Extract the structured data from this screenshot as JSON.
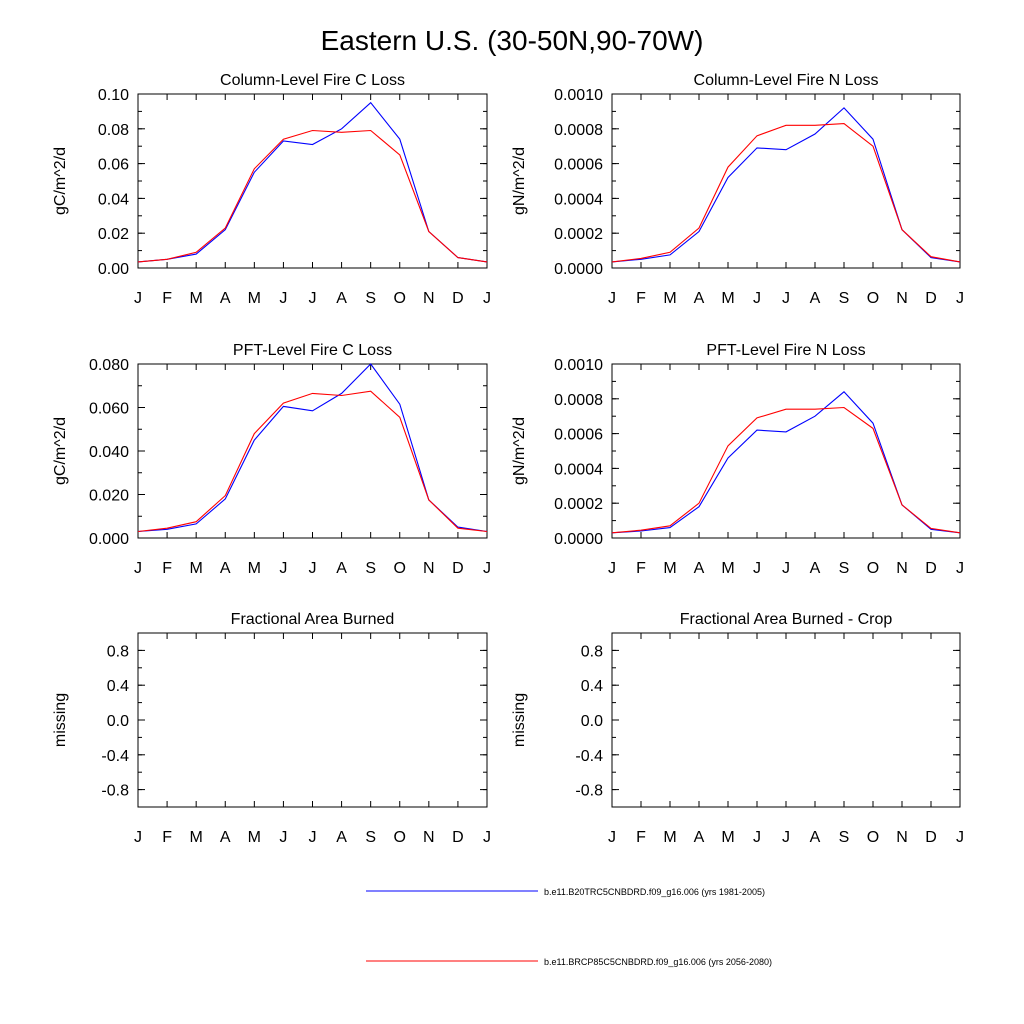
{
  "figure": {
    "title": "Eastern U.S. (30-50N,90-70W)"
  },
  "legend": [
    {
      "label": "b.e11.B20TRC5CNBDRD.f09_g16.006 (yrs 1981-2005)",
      "color": "#0000ff"
    },
    {
      "label": "b.e11.BRCP85C5CNBDRD.f09_g16.006 (yrs 2056-2080)",
      "color": "#ff0000"
    }
  ],
  "chart_data": [
    {
      "type": "line",
      "title": "Column-Level Fire C Loss",
      "xlabel": "",
      "ylabel": "gC/m^2/d",
      "categories": [
        "J",
        "F",
        "M",
        "A",
        "M",
        "J",
        "J",
        "A",
        "S",
        "O",
        "N",
        "D",
        "J"
      ],
      "ylim": [
        0.0,
        0.1
      ],
      "yticks": [
        0.0,
        0.02,
        0.04,
        0.06,
        0.08,
        0.1
      ],
      "yticklabels": [
        "0.00",
        "0.02",
        "0.04",
        "0.06",
        "0.08",
        "0.10"
      ],
      "series": [
        {
          "name": "b.e11.B20TRC5CNBDRD.f09_g16.006 (yrs 1981-2005)",
          "color": "#0000ff",
          "values": [
            0.0035,
            0.005,
            0.008,
            0.022,
            0.055,
            0.073,
            0.071,
            0.08,
            0.095,
            0.074,
            0.021,
            0.006,
            0.0035
          ]
        },
        {
          "name": "b.e11.BRCP85C5CNBDRD.f09_g16.006 (yrs 2056-2080)",
          "color": "#ff0000",
          "values": [
            0.0035,
            0.005,
            0.009,
            0.023,
            0.057,
            0.074,
            0.079,
            0.078,
            0.079,
            0.065,
            0.021,
            0.006,
            0.0035
          ]
        }
      ]
    },
    {
      "type": "line",
      "title": "Column-Level Fire N Loss",
      "xlabel": "",
      "ylabel": "gN/m^2/d",
      "categories": [
        "J",
        "F",
        "M",
        "A",
        "M",
        "J",
        "J",
        "A",
        "S",
        "O",
        "N",
        "D",
        "J"
      ],
      "ylim": [
        0.0,
        0.001
      ],
      "yticks": [
        0.0,
        0.0002,
        0.0004,
        0.0006,
        0.0008,
        0.001
      ],
      "yticklabels": [
        "0.0000",
        "0.0002",
        "0.0004",
        "0.0006",
        "0.0008",
        "0.0010"
      ],
      "series": [
        {
          "name": "b.e11.B20TRC5CNBDRD.f09_g16.006 (yrs 1981-2005)",
          "color": "#0000ff",
          "values": [
            3.5e-05,
            5e-05,
            7.5e-05,
            0.00021,
            0.00052,
            0.00069,
            0.00068,
            0.00077,
            0.00092,
            0.00074,
            0.00022,
            6e-05,
            3.5e-05
          ]
        },
        {
          "name": "b.e11.BRCP85C5CNBDRD.f09_g16.006 (yrs 2056-2080)",
          "color": "#ff0000",
          "values": [
            3.5e-05,
            5.5e-05,
            9e-05,
            0.00023,
            0.00058,
            0.00076,
            0.00082,
            0.00082,
            0.00083,
            0.0007,
            0.00022,
            6.5e-05,
            3.5e-05
          ]
        }
      ]
    },
    {
      "type": "line",
      "title": "PFT-Level Fire C Loss",
      "xlabel": "",
      "ylabel": "gC/m^2/d",
      "categories": [
        "J",
        "F",
        "M",
        "A",
        "M",
        "J",
        "J",
        "A",
        "S",
        "O",
        "N",
        "D",
        "J"
      ],
      "ylim": [
        0.0,
        0.08
      ],
      "yticks": [
        0.0,
        0.02,
        0.04,
        0.06,
        0.08
      ],
      "yticklabels": [
        "0.000",
        "0.020",
        "0.040",
        "0.060",
        "0.080"
      ],
      "series": [
        {
          "name": "b.e11.B20TRC5CNBDRD.f09_g16.006 (yrs 1981-2005)",
          "color": "#0000ff",
          "values": [
            0.003,
            0.004,
            0.0065,
            0.018,
            0.045,
            0.0605,
            0.0585,
            0.0665,
            0.08,
            0.0615,
            0.0175,
            0.005,
            0.003
          ]
        },
        {
          "name": "b.e11.BRCP85C5CNBDRD.f09_g16.006 (yrs 2056-2080)",
          "color": "#ff0000",
          "values": [
            0.003,
            0.0045,
            0.0075,
            0.0195,
            0.048,
            0.062,
            0.0665,
            0.0655,
            0.0675,
            0.0555,
            0.0175,
            0.0045,
            0.003
          ]
        }
      ]
    },
    {
      "type": "line",
      "title": "PFT-Level Fire N Loss",
      "xlabel": "",
      "ylabel": "gN/m^2/d",
      "categories": [
        "J",
        "F",
        "M",
        "A",
        "M",
        "J",
        "J",
        "A",
        "S",
        "O",
        "N",
        "D",
        "J"
      ],
      "ylim": [
        0.0,
        0.001
      ],
      "yticks": [
        0.0,
        0.0002,
        0.0004,
        0.0006,
        0.0008,
        0.001
      ],
      "yticklabels": [
        "0.0000",
        "0.0002",
        "0.0004",
        "0.0006",
        "0.0008",
        "0.0010"
      ],
      "series": [
        {
          "name": "b.e11.B20TRC5CNBDRD.f09_g16.006 (yrs 1981-2005)",
          "color": "#0000ff",
          "values": [
            3e-05,
            4e-05,
            6e-05,
            0.00018,
            0.00046,
            0.00062,
            0.00061,
            0.0007,
            0.00084,
            0.00066,
            0.00019,
            5e-05,
            3e-05
          ]
        },
        {
          "name": "b.e11.BRCP85C5CNBDRD.f09_g16.006 (yrs 2056-2080)",
          "color": "#ff0000",
          "values": [
            3e-05,
            4.5e-05,
            7e-05,
            0.0002,
            0.00053,
            0.00069,
            0.00074,
            0.00074,
            0.00075,
            0.00063,
            0.00019,
            5.5e-05,
            3e-05
          ]
        }
      ]
    },
    {
      "type": "line",
      "title": "Fractional Area Burned",
      "xlabel": "",
      "ylabel": "missing",
      "categories": [
        "J",
        "F",
        "M",
        "A",
        "M",
        "J",
        "J",
        "A",
        "S",
        "O",
        "N",
        "D",
        "J"
      ],
      "ylim": [
        -1.0,
        1.0
      ],
      "yticks": [
        -0.8,
        -0.4,
        0.0,
        0.4,
        0.8
      ],
      "yticklabels": [
        "-0.8",
        "-0.4",
        "0.0",
        "0.4",
        "0.8"
      ],
      "series": []
    },
    {
      "type": "line",
      "title": "Fractional Area Burned - Crop",
      "xlabel": "",
      "ylabel": "missing",
      "categories": [
        "J",
        "F",
        "M",
        "A",
        "M",
        "J",
        "J",
        "A",
        "S",
        "O",
        "N",
        "D",
        "J"
      ],
      "ylim": [
        -1.0,
        1.0
      ],
      "yticks": [
        -0.8,
        -0.4,
        0.0,
        0.4,
        0.8
      ],
      "yticklabels": [
        "-0.8",
        "-0.4",
        "0.0",
        "0.4",
        "0.8"
      ],
      "series": []
    }
  ]
}
